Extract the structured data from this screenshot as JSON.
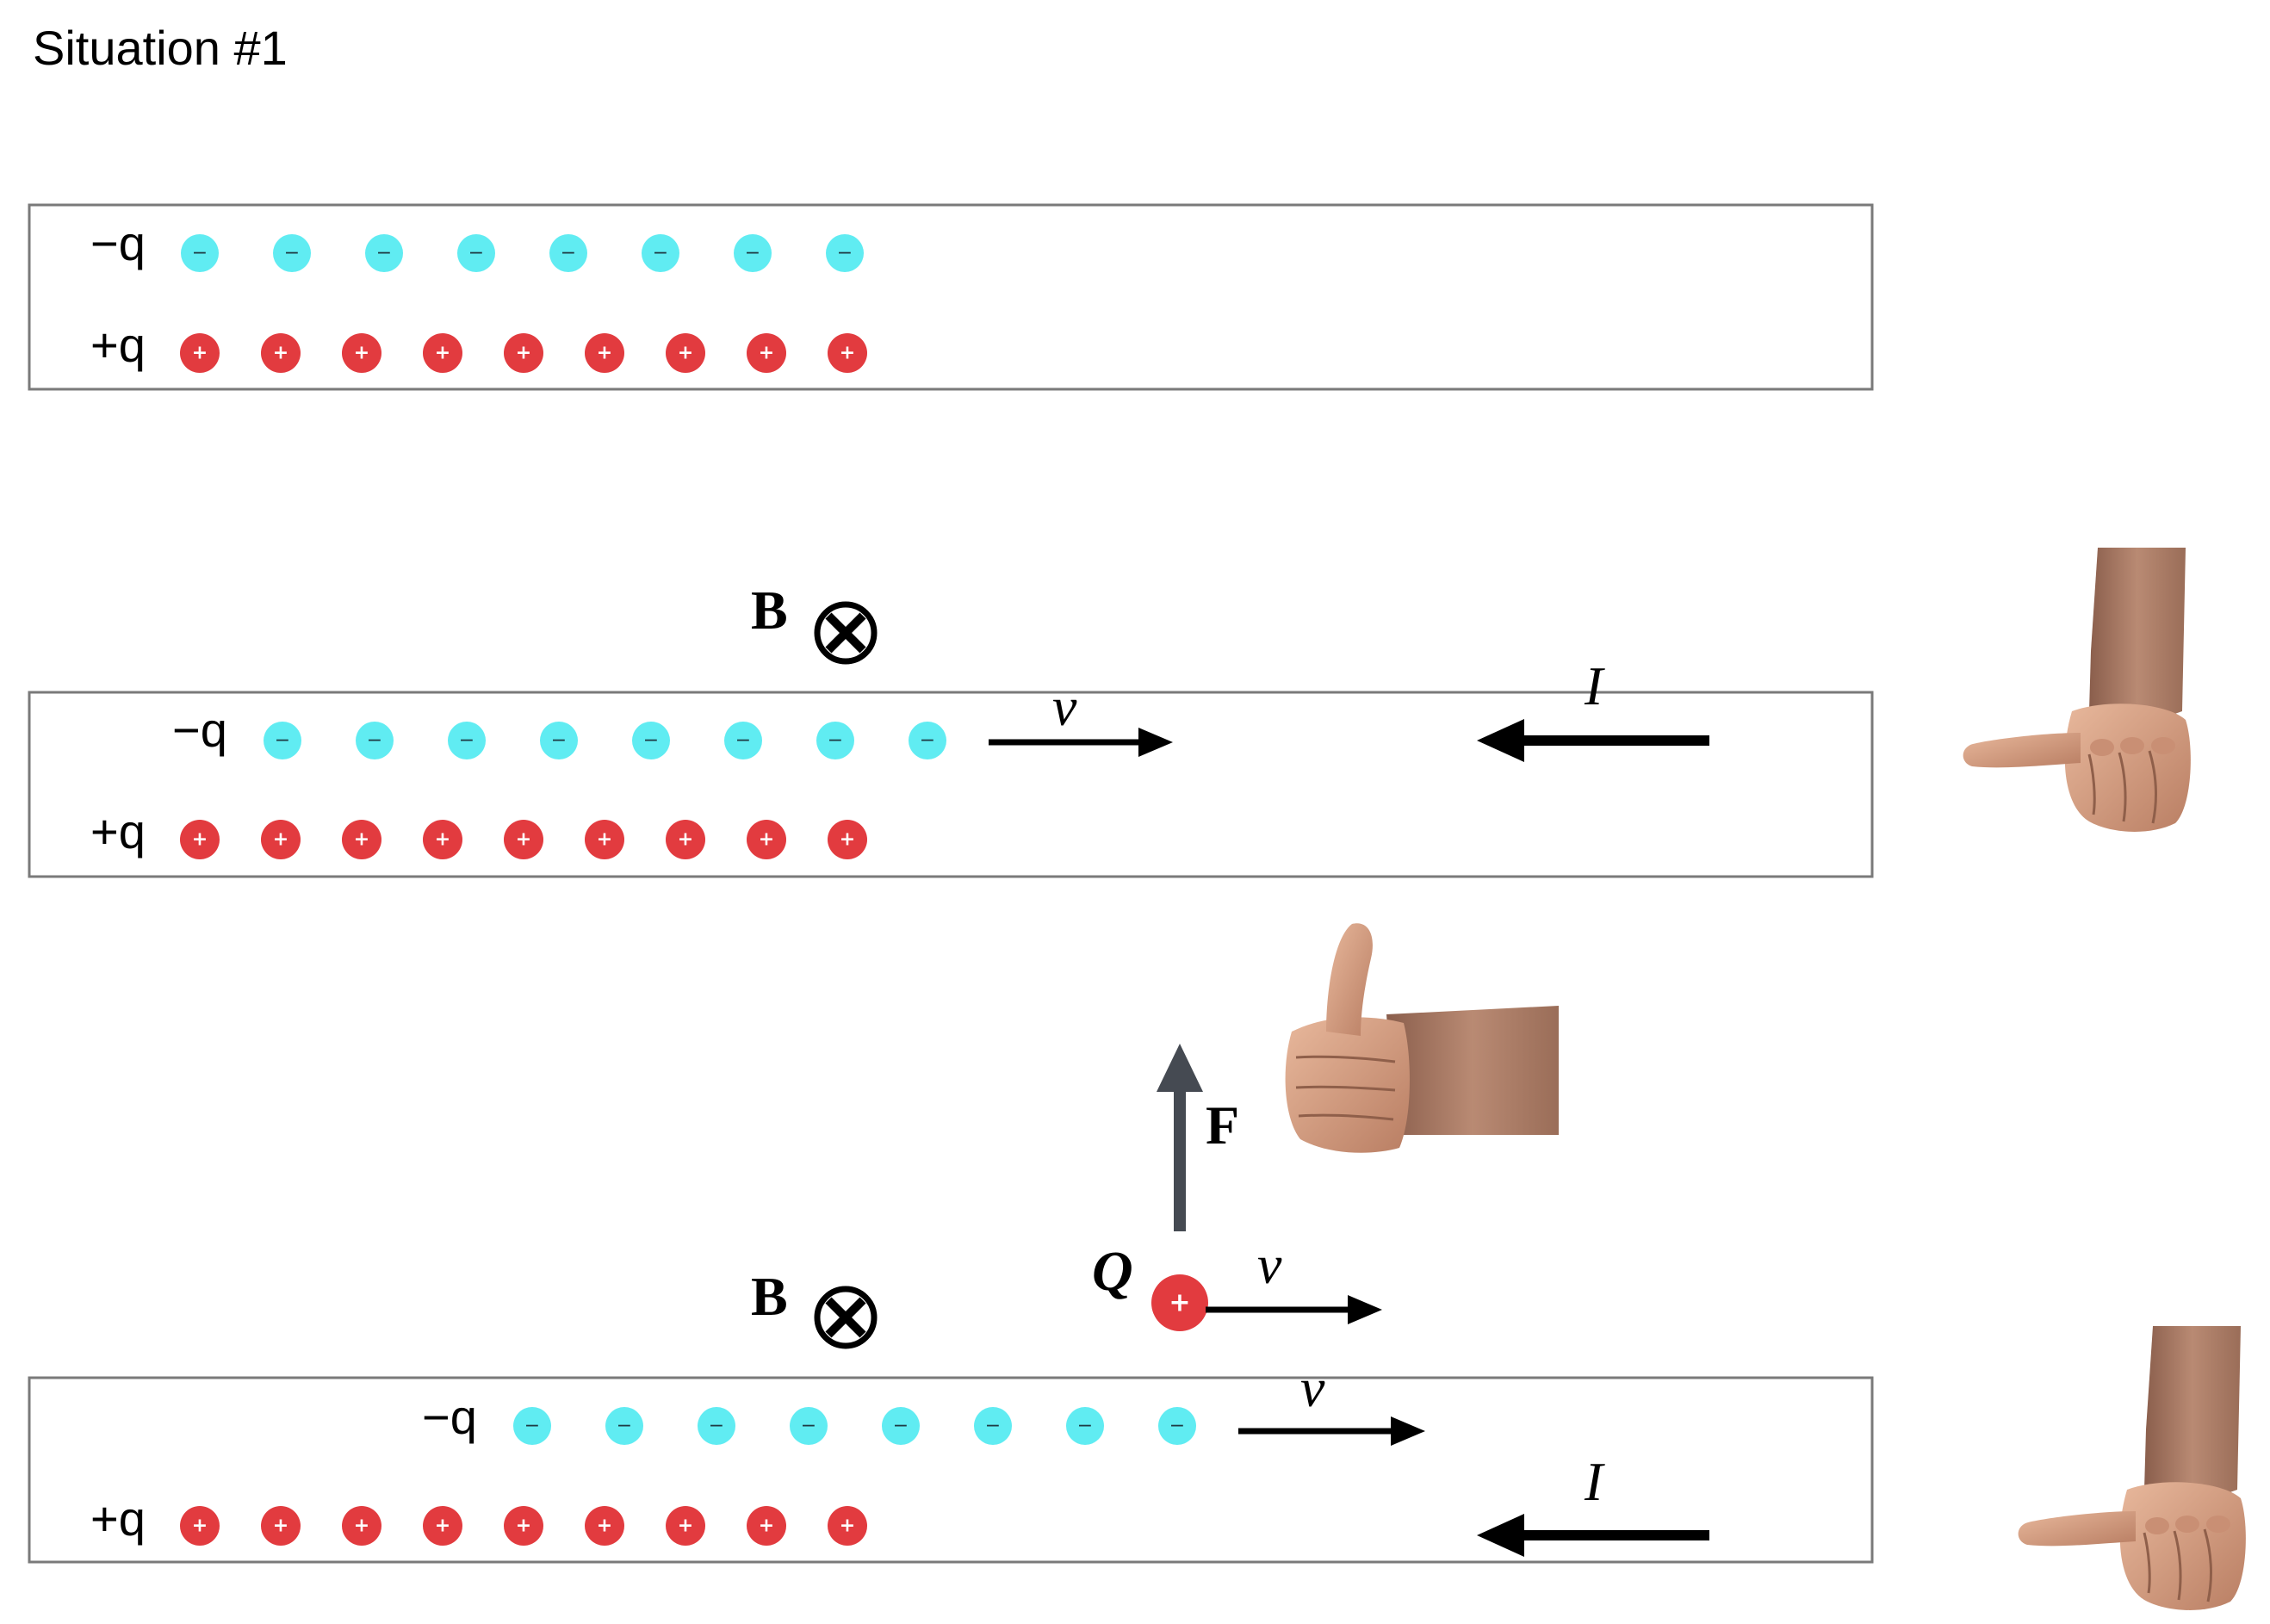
{
  "title": "Situation #1",
  "labels": {
    "neg_charge": "−q",
    "pos_charge": "+q",
    "field": "B",
    "velocity": "v",
    "current": "I",
    "force": "F",
    "test_charge": "Q"
  },
  "charge_signs": {
    "positive": "+",
    "negative": "−"
  },
  "panels": [
    {
      "id": "panel-1",
      "neg_count": 8,
      "pos_count": 9,
      "shows_velocity": false,
      "shows_current": false,
      "shows_field": false
    },
    {
      "id": "panel-2",
      "neg_count": 8,
      "pos_count": 9,
      "shows_velocity": true,
      "shows_current": true,
      "shows_field": true
    },
    {
      "id": "panel-3",
      "neg_count": 8,
      "pos_count": 9,
      "shows_velocity": true,
      "shows_current": true,
      "shows_field": true,
      "shows_test_charge": true
    }
  ],
  "colors": {
    "negative": "#60ecf2",
    "positive": "#e23b3f",
    "border": "#7a7a7a",
    "arrow": "#000000",
    "force_arrow": "#454a52",
    "skin": "#d9a283"
  }
}
